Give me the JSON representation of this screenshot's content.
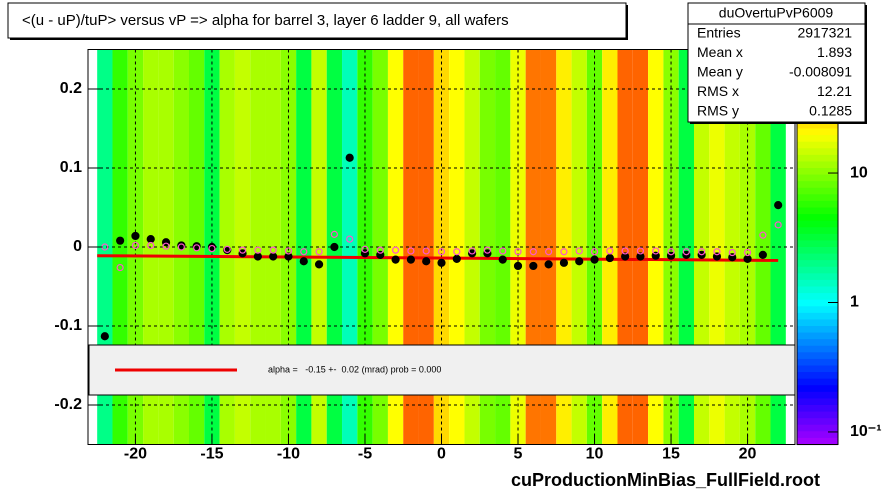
{
  "chart_data": {
    "type": "heatmap",
    "title": "<(u - uP)/tuP> versus   vP => alpha for barrel 3, layer 6 ladder 9, all wafers",
    "footer": "cuProductionMinBias_FullField.root",
    "stats": {
      "title": "duOvertuPvP6009",
      "rows": [
        {
          "label": "Entries",
          "value": 2917321
        },
        {
          "label": "Mean x",
          "value": 1.893
        },
        {
          "label": "Mean y",
          "value": -0.008091
        },
        {
          "label": "RMS x",
          "value": 12.21
        },
        {
          "label": "RMS y",
          "value": 0.1285
        }
      ]
    },
    "fit_label": "alpha =   -0.15 +-  0.02 (mrad) prob = 0.000",
    "xlim": [
      -23.1,
      23.1
    ],
    "ylim": [
      -0.25,
      0.25
    ],
    "xticks": [
      -20,
      -15,
      -10,
      -5,
      0,
      5,
      10,
      15,
      20
    ],
    "yticks": [
      -0.2,
      -0.1,
      0,
      0.1,
      0.2
    ],
    "grid": true,
    "heatmap": {
      "bins": [
        -22.5,
        -21.5,
        -20.5,
        -19.5,
        -18.5,
        -17.5,
        -16.5,
        -15.5,
        -14.5,
        -13.5,
        -12.5,
        -11.5,
        -10.5,
        -9.5,
        -8.5,
        -7.5,
        -6.5,
        -5.5,
        -4.5,
        -3.5,
        -2.5,
        -1.5,
        -0.5,
        0.5,
        1.5,
        2.5,
        3.5,
        4.5,
        5.5,
        6.5,
        7.5,
        8.5,
        9.5,
        10.5,
        11.5,
        12.5,
        13.5,
        14.5,
        15.5,
        16.5,
        17.5,
        18.5,
        19.5,
        20.5,
        21.5,
        22.5
      ],
      "values": [
        2,
        6,
        9,
        12,
        12,
        10,
        8,
        3,
        12,
        14,
        12,
        12,
        10,
        3,
        14,
        3,
        1.5,
        6,
        9,
        20,
        50,
        50,
        25,
        20,
        14,
        9,
        8,
        18,
        45,
        45,
        22,
        14,
        8,
        22,
        50,
        50,
        20,
        10,
        3,
        14,
        18,
        14,
        12,
        8,
        3
      ],
      "zlim": [
        0.08,
        90
      ],
      "log": true,
      "zticks": [
        {
          "value": 0.1,
          "label": "10⁻¹"
        },
        1,
        10
      ]
    },
    "series": [
      {
        "color": "#000000",
        "marker": "filled",
        "x": [
          -22,
          -21,
          -20,
          -19,
          -18,
          -17,
          -16,
          -15,
          -14,
          -13,
          -12,
          -11,
          -10,
          -9,
          -8,
          -7,
          -6,
          -5,
          -4,
          -3,
          -2,
          -1,
          0,
          1,
          2,
          3,
          4,
          5,
          6,
          7,
          8,
          9,
          10,
          11,
          12,
          13,
          14,
          15,
          16,
          17,
          18,
          19,
          20,
          21,
          22
        ],
        "values": [
          -0.113,
          0.008,
          0.014,
          0.01,
          0.006,
          0.002,
          0.001,
          0.0,
          -0.004,
          -0.008,
          -0.012,
          -0.012,
          -0.012,
          -0.018,
          -0.022,
          0.0,
          0.113,
          -0.008,
          -0.01,
          -0.016,
          -0.016,
          -0.018,
          -0.02,
          -0.015,
          -0.008,
          -0.008,
          -0.016,
          -0.024,
          -0.024,
          -0.022,
          -0.02,
          -0.018,
          -0.016,
          -0.014,
          -0.012,
          -0.012,
          -0.011,
          -0.011,
          -0.01,
          -0.01,
          -0.012,
          -0.013,
          -0.015,
          -0.01,
          0.053
        ]
      },
      {
        "color": "#ff55cc",
        "marker": "open",
        "x": [
          -22,
          -21,
          -20,
          -19,
          -18,
          -17,
          -16,
          -15,
          -14,
          -13,
          -12,
          -11,
          -10,
          -9,
          -8,
          -7,
          -6,
          -5,
          -4,
          -3,
          -2,
          -1,
          0,
          1,
          2,
          3,
          4,
          5,
          6,
          7,
          8,
          9,
          10,
          11,
          12,
          13,
          14,
          15,
          16,
          17,
          18,
          19,
          20,
          21,
          22
        ],
        "values": [
          0.0,
          -0.026,
          0.002,
          0.002,
          0.001,
          0.0,
          -0.001,
          -0.002,
          -0.003,
          -0.004,
          -0.004,
          -0.004,
          -0.005,
          -0.006,
          -0.006,
          0.016,
          0.01,
          -0.003,
          -0.004,
          -0.004,
          -0.005,
          -0.005,
          -0.006,
          -0.006,
          -0.005,
          -0.004,
          -0.005,
          -0.006,
          -0.006,
          -0.006,
          -0.006,
          -0.005,
          -0.006,
          -0.005,
          -0.005,
          -0.005,
          -0.005,
          -0.006,
          -0.006,
          -0.006,
          -0.006,
          -0.007,
          -0.007,
          0.015,
          0.028
        ]
      },
      {
        "color": "#ee0000",
        "marker": "line",
        "x": [
          -22.5,
          22
        ],
        "values": [
          -0.011,
          -0.017
        ]
      }
    ]
  }
}
